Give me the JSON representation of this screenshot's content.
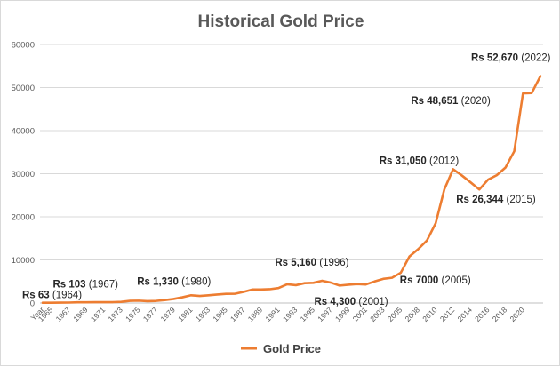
{
  "chart_data": {
    "type": "line",
    "title": "Historical Gold Price",
    "xlabel": "",
    "ylabel": "",
    "ylim": [
      0,
      60000
    ],
    "y_ticks": [
      "0",
      "10000",
      "20000",
      "30000",
      "40000",
      "50000",
      "60000"
    ],
    "grid": true,
    "legend_position": "bottom",
    "x_tick_labels": [
      "Year",
      "1965",
      "1967",
      "1969",
      "1971",
      "1973",
      "1975",
      "1977",
      "1979",
      "1981",
      "1983",
      "1985",
      "1987",
      "1989",
      "1991",
      "1993",
      "1995",
      "1997",
      "1999",
      "2001",
      "2003",
      "2005",
      "2008",
      "2010",
      "2012",
      "2014",
      "2016",
      "2018",
      "2020"
    ],
    "series": [
      {
        "name": "Gold Price",
        "color": "#ed7d31",
        "points": [
          {
            "x": 1964,
            "y": 63
          },
          {
            "x": 1965,
            "y": 72
          },
          {
            "x": 1966,
            "y": 84
          },
          {
            "x": 1967,
            "y": 103
          },
          {
            "x": 1968,
            "y": 162
          },
          {
            "x": 1969,
            "y": 176
          },
          {
            "x": 1970,
            "y": 184
          },
          {
            "x": 1971,
            "y": 193
          },
          {
            "x": 1972,
            "y": 202
          },
          {
            "x": 1973,
            "y": 279
          },
          {
            "x": 1974,
            "y": 506
          },
          {
            "x": 1975,
            "y": 540
          },
          {
            "x": 1976,
            "y": 432
          },
          {
            "x": 1977,
            "y": 486
          },
          {
            "x": 1978,
            "y": 685
          },
          {
            "x": 1979,
            "y": 937
          },
          {
            "x": 1980,
            "y": 1330
          },
          {
            "x": 1981,
            "y": 1800
          },
          {
            "x": 1982,
            "y": 1645
          },
          {
            "x": 1983,
            "y": 1800
          },
          {
            "x": 1984,
            "y": 1970
          },
          {
            "x": 1985,
            "y": 2130
          },
          {
            "x": 1986,
            "y": 2140
          },
          {
            "x": 1987,
            "y": 2570
          },
          {
            "x": 1988,
            "y": 3130
          },
          {
            "x": 1989,
            "y": 3140
          },
          {
            "x": 1990,
            "y": 3200
          },
          {
            "x": 1991,
            "y": 3466
          },
          {
            "x": 1992,
            "y": 4334
          },
          {
            "x": 1993,
            "y": 4140
          },
          {
            "x": 1994,
            "y": 4598
          },
          {
            "x": 1995,
            "y": 4680
          },
          {
            "x": 1996,
            "y": 5160
          },
          {
            "x": 1997,
            "y": 4725
          },
          {
            "x": 1998,
            "y": 4045
          },
          {
            "x": 1999,
            "y": 4234
          },
          {
            "x": 2000,
            "y": 4400
          },
          {
            "x": 2001,
            "y": 4300
          },
          {
            "x": 2002,
            "y": 4990
          },
          {
            "x": 2003,
            "y": 5600
          },
          {
            "x": 2004,
            "y": 5850
          },
          {
            "x": 2005,
            "y": 7000
          },
          {
            "x": 2007,
            "y": 10800
          },
          {
            "x": 2008,
            "y": 12500
          },
          {
            "x": 2009,
            "y": 14500
          },
          {
            "x": 2010,
            "y": 18500
          },
          {
            "x": 2011,
            "y": 26400
          },
          {
            "x": 2012,
            "y": 31050
          },
          {
            "x": 2013,
            "y": 29600
          },
          {
            "x": 2014,
            "y": 28006
          },
          {
            "x": 2015,
            "y": 26344
          },
          {
            "x": 2016,
            "y": 28623
          },
          {
            "x": 2017,
            "y": 29667
          },
          {
            "x": 2018,
            "y": 31438
          },
          {
            "x": 2019,
            "y": 35220
          },
          {
            "x": 2020,
            "y": 48651
          },
          {
            "x": 2021,
            "y": 48720
          },
          {
            "x": 2022,
            "y": 52670
          }
        ]
      }
    ],
    "annotations": [
      {
        "value_label": "Rs 63",
        "year_label": "(1964)",
        "x": 1964,
        "y": 63
      },
      {
        "value_label": "Rs 103",
        "year_label": "(1967)",
        "x": 1967,
        "y": 103
      },
      {
        "value_label": "Rs 1,330",
        "year_label": "(1980)",
        "x": 1980,
        "y": 1330
      },
      {
        "value_label": "Rs 5,160",
        "year_label": "(1996)",
        "x": 1996,
        "y": 5160
      },
      {
        "value_label": "Rs 4,300",
        "year_label": "(2001)",
        "x": 2001,
        "y": 4300
      },
      {
        "value_label": "Rs 7000",
        "year_label": "(2005)",
        "x": 2005,
        "y": 7000
      },
      {
        "value_label": "Rs 31,050",
        "year_label": "(2012)",
        "x": 2012,
        "y": 31050
      },
      {
        "value_label": "Rs 26,344",
        "year_label": "(2015)",
        "x": 2015,
        "y": 26344
      },
      {
        "value_label": "Rs 48,651",
        "year_label": "(2020)",
        "x": 2020,
        "y": 48651
      },
      {
        "value_label": "Rs 52,670",
        "year_label": "(2022)",
        "x": 2022,
        "y": 52670
      }
    ]
  }
}
